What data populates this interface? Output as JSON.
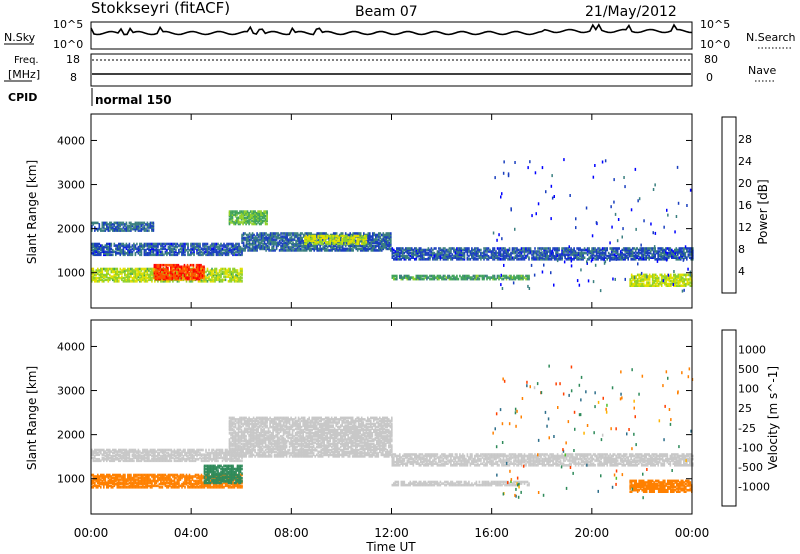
{
  "header": {
    "station": "Stokkseyri (fitACF)",
    "beam": "Beam 07",
    "date": "21/May/2012"
  },
  "top_panels": {
    "nsky_label": "N.Sky",
    "nsearch_label": "N.Search",
    "nsky_ticks": [
      "10^5",
      "10^0"
    ],
    "nsearch_ticks": [
      "10^5",
      "10^0"
    ],
    "freq_label_line1": "Freq.",
    "freq_label_line2": "[MHz]",
    "freq_ticks": [
      "18",
      "8"
    ],
    "nave_label": "Nave",
    "nave_ticks": [
      "80",
      "0"
    ],
    "cpid_label": "CPID",
    "cpid_value": "normal 150"
  },
  "colors": {
    "power_scale": [
      "#0000ff",
      "#1a3fbf",
      "#3a7f7f",
      "#3fa35a",
      "#8fd12a",
      "#e0e000",
      "#ff9900",
      "#ff4f00",
      "#ff0000"
    ],
    "velocity_scale": [
      "#1a2fbf",
      "#2d6e8a",
      "#2e8a5a",
      "#4fbf2a",
      "#c8c8c8",
      "#ffb400",
      "#ff8000",
      "#ff4000",
      "#ff0000"
    ]
  },
  "chart_data": [
    {
      "type": "heatmap",
      "name": "power",
      "ylabel": "Slant Range [km]",
      "yticks": [
        "1000",
        "2000",
        "3000",
        "4000"
      ],
      "ylim": [
        200,
        4600
      ],
      "xlim_hours": [
        0,
        24
      ],
      "colorbar_label": "Power [dB]",
      "colorbar_ticks": [
        "4",
        "8",
        "12",
        "16",
        "20",
        "24",
        "28"
      ],
      "colorbar_range": [
        0,
        30
      ],
      "bands": [
        {
          "t0": 0.0,
          "t1": 6.0,
          "r0": 1400,
          "r1": 1650,
          "v": 6
        },
        {
          "t0": 0.0,
          "t1": 2.5,
          "r0": 1950,
          "r1": 2150,
          "v": 7
        },
        {
          "t0": 0.0,
          "t1": 6.0,
          "r0": 800,
          "r1": 1100,
          "v": 16
        },
        {
          "t0": 2.5,
          "t1": 4.5,
          "r0": 850,
          "r1": 1200,
          "v": 26
        },
        {
          "t0": 5.5,
          "t1": 7.0,
          "r0": 2100,
          "r1": 2400,
          "v": 13
        },
        {
          "t0": 6.0,
          "t1": 12.0,
          "r0": 1500,
          "r1": 1900,
          "v": 7
        },
        {
          "t0": 8.5,
          "t1": 11.0,
          "r0": 1650,
          "r1": 1850,
          "v": 17
        },
        {
          "t0": 12.0,
          "t1": 24.0,
          "r0": 1300,
          "r1": 1550,
          "v": 6
        },
        {
          "t0": 12.0,
          "t1": 17.5,
          "r0": 850,
          "r1": 950,
          "v": 11
        },
        {
          "t0": 21.5,
          "t1": 24.0,
          "r0": 700,
          "r1": 950,
          "v": 17
        }
      ]
    },
    {
      "type": "heatmap",
      "name": "velocity",
      "ylabel": "Slant Range [km]",
      "yticks": [
        "1000",
        "2000",
        "3000",
        "4000"
      ],
      "ylim": [
        200,
        4600
      ],
      "xlim_hours": [
        0,
        24
      ],
      "colorbar_label": "Velocity [m s^-1]",
      "colorbar_ticks": [
        "1000",
        "500",
        "100",
        "25",
        "-25",
        "-100",
        "-500",
        "-1000"
      ],
      "bands": [
        {
          "t0": 0.0,
          "t1": 6.0,
          "r0": 1400,
          "r1": 1650,
          "v": 0
        },
        {
          "t0": 0.0,
          "t1": 6.0,
          "r0": 800,
          "r1": 1100,
          "v": -300
        },
        {
          "t0": 4.5,
          "t1": 6.0,
          "r0": 900,
          "r1": 1300,
          "v": 150
        },
        {
          "t0": 5.5,
          "t1": 12.0,
          "r0": 1500,
          "r1": 2400,
          "v": 0
        },
        {
          "t0": 12.0,
          "t1": 24.0,
          "r0": 1300,
          "r1": 1550,
          "v": 0
        },
        {
          "t0": 12.0,
          "t1": 17.5,
          "r0": 850,
          "r1": 950,
          "v": 0
        },
        {
          "t0": 21.5,
          "t1": 24.0,
          "r0": 700,
          "r1": 950,
          "v": -400
        }
      ]
    }
  ],
  "x_axis": {
    "label": "Time UT",
    "ticks": [
      "00:00",
      "04:00",
      "08:00",
      "12:00",
      "16:00",
      "20:00",
      "00:00"
    ]
  }
}
